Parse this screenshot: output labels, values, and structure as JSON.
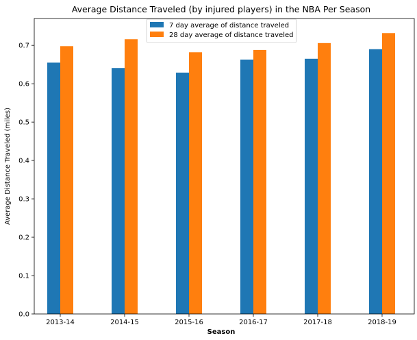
{
  "chart_data": {
    "type": "bar",
    "title": "Average Distance Traveled (by injured players) in the NBA Per Season",
    "xlabel": "Season",
    "ylabel": "Average Distance Traveled (miles)",
    "categories": [
      "2013-14",
      "2014-15",
      "2015-16",
      "2016-17",
      "2017-18",
      "2018-19"
    ],
    "series": [
      {
        "name": "7 day average of distance traveled",
        "color": "#1f77b4",
        "values": [
          0.655,
          0.641,
          0.629,
          0.663,
          0.665,
          0.69
        ]
      },
      {
        "name": "28 day average of distance traveled",
        "color": "#ff7f0e",
        "values": [
          0.698,
          0.716,
          0.682,
          0.688,
          0.706,
          0.732
        ]
      }
    ],
    "ylim": [
      0,
      0.77
    ],
    "yticks": [
      "0.0",
      "0.1",
      "0.2",
      "0.3",
      "0.4",
      "0.5",
      "0.6",
      "0.7"
    ],
    "legend_position": "top-center",
    "grid": false
  }
}
